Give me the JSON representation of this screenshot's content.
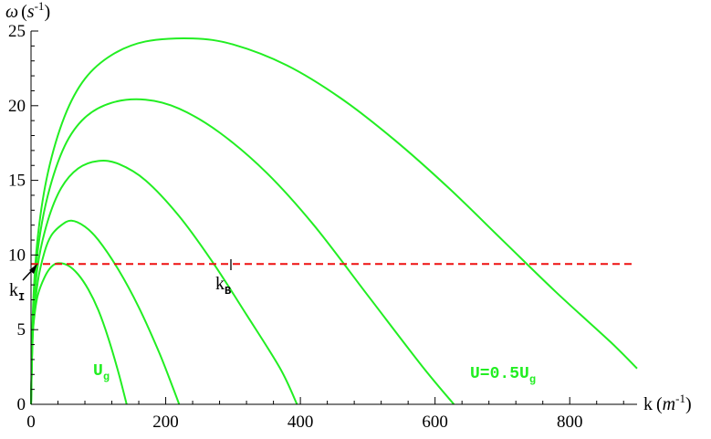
{
  "chart_data": {
    "type": "line",
    "title": "",
    "xlabel": "k",
    "xlabel_unit": "m",
    "xlabel_unit_exp": "-1",
    "ylabel": "ω",
    "ylabel_unit": "s",
    "ylabel_unit_exp": "-1",
    "xlim": [
      0,
      900
    ],
    "ylim": [
      0,
      25
    ],
    "x_ticks": [
      0,
      200,
      400,
      600,
      800
    ],
    "y_ticks": [
      0,
      5,
      10,
      15,
      20,
      25
    ],
    "grid": false,
    "curve_color": "#22ee22",
    "reference_color": "#ee1111",
    "series": [
      {
        "values": [
          [
            0,
            0
          ],
          [
            2,
            4.2
          ],
          [
            5,
            5.9
          ],
          [
            10,
            7.3
          ],
          [
            20,
            8.5
          ],
          [
            30,
            9.2
          ],
          [
            40,
            9.45
          ],
          [
            55,
            9.3
          ],
          [
            70,
            8.7
          ],
          [
            85,
            7.7
          ],
          [
            100,
            6.3
          ],
          [
            115,
            4.4
          ],
          [
            130,
            2.1
          ],
          [
            142,
            0
          ]
        ]
      },
      {
        "values": [
          [
            0,
            0
          ],
          [
            3,
            5.0
          ],
          [
            10,
            8.2
          ],
          [
            20,
            10.2
          ],
          [
            30,
            11.3
          ],
          [
            45,
            12.0
          ],
          [
            60,
            12.3
          ],
          [
            80,
            11.9
          ],
          [
            100,
            11.0
          ],
          [
            130,
            9.0
          ],
          [
            160,
            6.5
          ],
          [
            190,
            3.5
          ],
          [
            210,
            1.2
          ],
          [
            220,
            0
          ]
        ]
      },
      {
        "values": [
          [
            0,
            0
          ],
          [
            3,
            5.5
          ],
          [
            10,
            9.3
          ],
          [
            25,
            12.3
          ],
          [
            45,
            14.5
          ],
          [
            70,
            15.8
          ],
          [
            100,
            16.3
          ],
          [
            130,
            16.1
          ],
          [
            170,
            15.0
          ],
          [
            220,
            12.6
          ],
          [
            270,
            9.5
          ],
          [
            320,
            6.0
          ],
          [
            370,
            2.4
          ],
          [
            395,
            0
          ]
        ]
      },
      {
        "values": [
          [
            0,
            0
          ],
          [
            3,
            6.0
          ],
          [
            10,
            10.3
          ],
          [
            25,
            14.0
          ],
          [
            50,
            17.3
          ],
          [
            80,
            19.2
          ],
          [
            120,
            20.2
          ],
          [
            170,
            20.4
          ],
          [
            220,
            19.8
          ],
          [
            280,
            18.2
          ],
          [
            350,
            15.5
          ],
          [
            420,
            12.0
          ],
          [
            500,
            7.3
          ],
          [
            580,
            2.6
          ],
          [
            628,
            0
          ]
        ]
      },
      {
        "values": [
          [
            0,
            0
          ],
          [
            3,
            6.5
          ],
          [
            10,
            11.2
          ],
          [
            25,
            15.5
          ],
          [
            50,
            19.3
          ],
          [
            80,
            21.8
          ],
          [
            120,
            23.4
          ],
          [
            170,
            24.3
          ],
          [
            240,
            24.5
          ],
          [
            300,
            24.1
          ],
          [
            380,
            22.7
          ],
          [
            460,
            20.5
          ],
          [
            540,
            17.7
          ],
          [
            620,
            14.5
          ],
          [
            700,
            11.0
          ],
          [
            780,
            7.5
          ],
          [
            860,
            4.2
          ],
          [
            900,
            2.4
          ]
        ]
      }
    ],
    "reference_line": {
      "y": 9.4,
      "style": "dashed"
    },
    "annotations": {
      "kI": {
        "main": "k",
        "sub": "I",
        "point": [
          12,
          9.4
        ]
      },
      "kB": {
        "main": "k",
        "sub": "B",
        "point": [
          297,
          9.4
        ]
      },
      "Ug": {
        "main": "U",
        "sub": "g"
      },
      "U05": {
        "main": "U=0.5U",
        "sub": "g"
      }
    }
  }
}
